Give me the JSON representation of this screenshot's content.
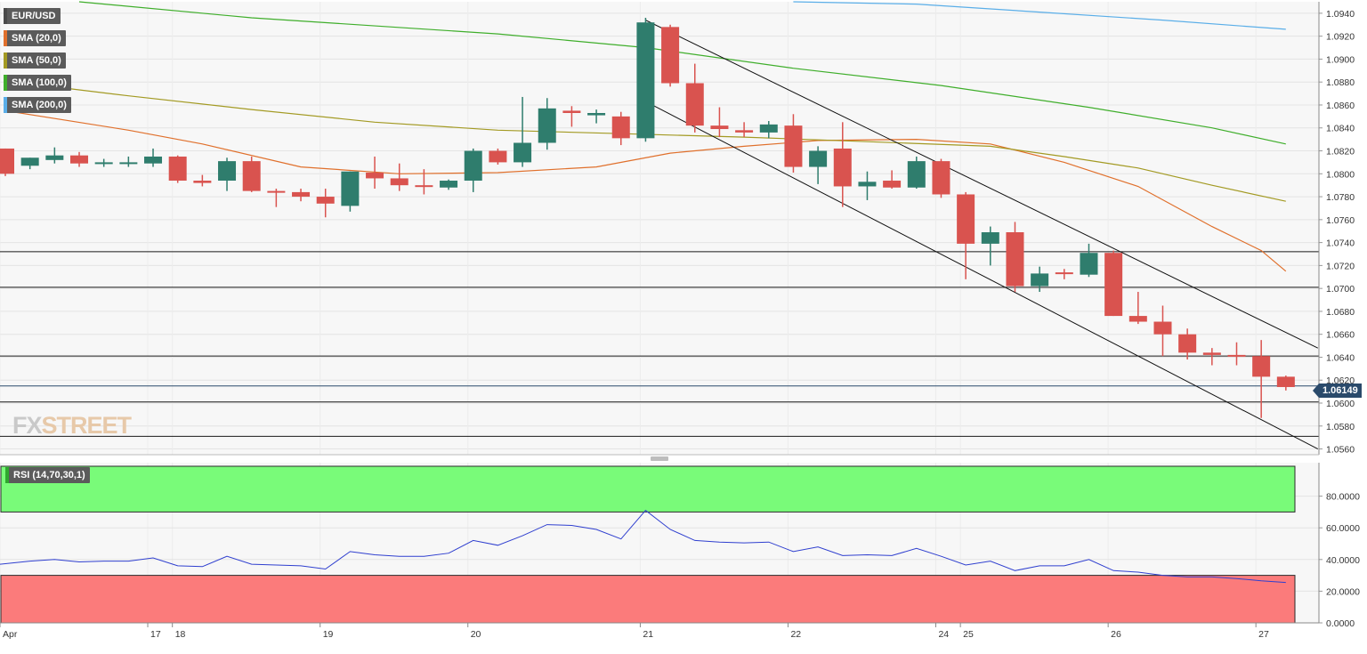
{
  "instrument": "EUR/USD",
  "current_price_label": "1.06149",
  "watermark": {
    "fx": "FX",
    "rest": "STREET"
  },
  "legends": [
    {
      "label": "EUR/USD",
      "color": "#4a4a4a"
    },
    {
      "label": "SMA (20,0)",
      "color": "#e0702c"
    },
    {
      "label": "SMA (50,0)",
      "color": "#a39a23"
    },
    {
      "label": "SMA (100,0)",
      "color": "#3fae2b"
    },
    {
      "label": "SMA (200,0)",
      "color": "#5aaee8"
    }
  ],
  "rsi_legend": {
    "label": "RSI (14,70,30,1)",
    "color": "#2ea82e"
  },
  "chart_data": [
    {
      "type": "candlestick",
      "instrument": "EUR/USD",
      "timeframe_labels": [
        "Apr",
        "17",
        "18",
        "19",
        "20",
        "21",
        "22",
        "24",
        "25",
        "26",
        "27"
      ],
      "y_ticks": [
        "1.0940",
        "1.0920",
        "1.0900",
        "1.0880",
        "1.0860",
        "1.0840",
        "1.0820",
        "1.0800",
        "1.0780",
        "1.0760",
        "1.0740",
        "1.0720",
        "1.0700",
        "1.0680",
        "1.0660",
        "1.0640",
        "1.0620",
        "1.0600",
        "1.0580",
        "1.0560"
      ],
      "ylim": [
        1.0555,
        1.095
      ],
      "current_price": 1.06149,
      "candles": [
        {
          "o": 1.0822,
          "h": 1.0822,
          "l": 1.0798,
          "c": 1.08
        },
        {
          "o": 1.0807,
          "h": 1.0814,
          "l": 1.0804,
          "c": 1.0814
        },
        {
          "o": 1.0812,
          "h": 1.0823,
          "l": 1.0809,
          "c": 1.0816
        },
        {
          "o": 1.0816,
          "h": 1.0819,
          "l": 1.0806,
          "c": 1.0809
        },
        {
          "o": 1.0809,
          "h": 1.0813,
          "l": 1.0806,
          "c": 1.081
        },
        {
          "o": 1.081,
          "h": 1.0815,
          "l": 1.0806,
          "c": 1.081
        },
        {
          "o": 1.0809,
          "h": 1.0822,
          "l": 1.0806,
          "c": 1.0815
        },
        {
          "o": 1.0815,
          "h": 1.0816,
          "l": 1.0792,
          "c": 1.0794
        },
        {
          "o": 1.0794,
          "h": 1.0799,
          "l": 1.0789,
          "c": 1.0792
        },
        {
          "o": 1.0794,
          "h": 1.0814,
          "l": 1.0785,
          "c": 1.0811
        },
        {
          "o": 1.0811,
          "h": 1.0815,
          "l": 1.0784,
          "c": 1.0785
        },
        {
          "o": 1.0785,
          "h": 1.0787,
          "l": 1.0771,
          "c": 1.0784
        },
        {
          "o": 1.0784,
          "h": 1.0787,
          "l": 1.0776,
          "c": 1.078
        },
        {
          "o": 1.078,
          "h": 1.0787,
          "l": 1.0762,
          "c": 1.0774
        },
        {
          "o": 1.0772,
          "h": 1.0802,
          "l": 1.0767,
          "c": 1.0802
        },
        {
          "o": 1.0801,
          "h": 1.0815,
          "l": 1.0787,
          "c": 1.0796
        },
        {
          "o": 1.0796,
          "h": 1.0809,
          "l": 1.0785,
          "c": 1.079
        },
        {
          "o": 1.079,
          "h": 1.0804,
          "l": 1.0782,
          "c": 1.0789
        },
        {
          "o": 1.0788,
          "h": 1.0795,
          "l": 1.0786,
          "c": 1.0794
        },
        {
          "o": 1.0794,
          "h": 1.0822,
          "l": 1.0784,
          "c": 1.082
        },
        {
          "o": 1.082,
          "h": 1.0822,
          "l": 1.0808,
          "c": 1.081
        },
        {
          "o": 1.081,
          "h": 1.0867,
          "l": 1.0806,
          "c": 1.0827
        },
        {
          "o": 1.0827,
          "h": 1.0866,
          "l": 1.0821,
          "c": 1.0857
        },
        {
          "o": 1.0855,
          "h": 1.0859,
          "l": 1.0841,
          "c": 1.0853
        },
        {
          "o": 1.0851,
          "h": 1.0856,
          "l": 1.0844,
          "c": 1.0853
        },
        {
          "o": 1.085,
          "h": 1.0854,
          "l": 1.0825,
          "c": 1.0831
        },
        {
          "o": 1.0831,
          "h": 1.0936,
          "l": 1.0828,
          "c": 1.0932
        },
        {
          "o": 1.0928,
          "h": 1.093,
          "l": 1.0876,
          "c": 1.0879
        },
        {
          "o": 1.0879,
          "h": 1.0896,
          "l": 1.0836,
          "c": 1.0842
        },
        {
          "o": 1.0842,
          "h": 1.0858,
          "l": 1.0832,
          "c": 1.0839
        },
        {
          "o": 1.0838,
          "h": 1.0845,
          "l": 1.0832,
          "c": 1.0836
        },
        {
          "o": 1.0836,
          "h": 1.0846,
          "l": 1.0831,
          "c": 1.0843
        },
        {
          "o": 1.0842,
          "h": 1.0852,
          "l": 1.0801,
          "c": 1.0806
        },
        {
          "o": 1.0806,
          "h": 1.0824,
          "l": 1.0791,
          "c": 1.082
        },
        {
          "o": 1.0822,
          "h": 1.0845,
          "l": 1.0771,
          "c": 1.0789
        },
        {
          "o": 1.0789,
          "h": 1.0802,
          "l": 1.0777,
          "c": 1.0793
        },
        {
          "o": 1.0794,
          "h": 1.0803,
          "l": 1.0787,
          "c": 1.0788
        },
        {
          "o": 1.0788,
          "h": 1.0815,
          "l": 1.0787,
          "c": 1.0811
        },
        {
          "o": 1.0811,
          "h": 1.0813,
          "l": 1.0779,
          "c": 1.0782
        },
        {
          "o": 1.0782,
          "h": 1.0784,
          "l": 1.0708,
          "c": 1.0739
        },
        {
          "o": 1.0739,
          "h": 1.0754,
          "l": 1.072,
          "c": 1.0749
        },
        {
          "o": 1.0749,
          "h": 1.0758,
          "l": 1.0697,
          "c": 1.0702
        },
        {
          "o": 1.0702,
          "h": 1.0719,
          "l": 1.0697,
          "c": 1.0713
        },
        {
          "o": 1.0714,
          "h": 1.0717,
          "l": 1.0708,
          "c": 1.0713
        },
        {
          "o": 1.0712,
          "h": 1.0739,
          "l": 1.071,
          "c": 1.0731
        },
        {
          "o": 1.0731,
          "h": 1.0733,
          "l": 1.0676,
          "c": 1.0676
        },
        {
          "o": 1.0676,
          "h": 1.0697,
          "l": 1.0669,
          "c": 1.0671
        },
        {
          "o": 1.0671,
          "h": 1.0685,
          "l": 1.0641,
          "c": 1.066
        },
        {
          "o": 1.066,
          "h": 1.0665,
          "l": 1.0638,
          "c": 1.0644
        },
        {
          "o": 1.0644,
          "h": 1.0648,
          "l": 1.0633,
          "c": 1.0642
        },
        {
          "o": 1.0642,
          "h": 1.0653,
          "l": 1.0633,
          "c": 1.0641
        },
        {
          "o": 1.0641,
          "h": 1.0655,
          "l": 1.0587,
          "c": 1.0623
        },
        {
          "o": 1.0623,
          "h": 1.0624,
          "l": 1.0611,
          "c": 1.0614
        }
      ],
      "series": [
        {
          "name": "SMA (20,0)",
          "color": "#e0702c",
          "points": [
            [
              0,
              1.0855
            ],
            [
              5,
              1.0838
            ],
            [
              8,
              1.0826
            ],
            [
              12,
              1.0806
            ],
            [
              16,
              1.08
            ],
            [
              20,
              1.0801
            ],
            [
              24,
              1.0806
            ],
            [
              27,
              1.0818
            ],
            [
              30,
              1.0824
            ],
            [
              33,
              1.0829
            ],
            [
              37,
              1.083
            ],
            [
              40,
              1.0826
            ],
            [
              43,
              1.081
            ],
            [
              46,
              1.0789
            ],
            [
              49,
              1.0754
            ],
            [
              51,
              1.0733
            ],
            [
              52,
              1.0715
            ]
          ]
        },
        {
          "name": "SMA (50,0)",
          "color": "#a39a23",
          "points": [
            [
              0,
              1.0881
            ],
            [
              5,
              1.0868
            ],
            [
              10,
              1.0856
            ],
            [
              15,
              1.0845
            ],
            [
              20,
              1.0838
            ],
            [
              25,
              1.0835
            ],
            [
              30,
              1.0832
            ],
            [
              35,
              1.0828
            ],
            [
              40,
              1.0824
            ],
            [
              43,
              1.0815
            ],
            [
              46,
              1.0805
            ],
            [
              49,
              1.079
            ],
            [
              52,
              1.0776
            ]
          ]
        },
        {
          "name": "SMA (100,0)",
          "color": "#3fae2b",
          "points": [
            [
              3,
              1.095
            ],
            [
              10,
              1.0936
            ],
            [
              20,
              1.0922
            ],
            [
              26,
              1.091
            ],
            [
              32,
              1.0892
            ],
            [
              38,
              1.0877
            ],
            [
              44,
              1.0858
            ],
            [
              49,
              1.084
            ],
            [
              52,
              1.0826
            ]
          ]
        },
        {
          "name": "SMA (200,0)",
          "color": "#5aaee8",
          "points": [
            [
              32,
              1.0952
            ],
            [
              37,
              1.0948
            ],
            [
              42,
              1.0941
            ],
            [
              47,
              1.0934
            ],
            [
              52,
              1.0926
            ]
          ]
        }
      ],
      "trendlines": [
        {
          "from": [
            26,
            1.0934
          ],
          "to": [
            53.3,
            1.0648
          ]
        },
        {
          "from": [
            26,
            1.0863
          ],
          "to": [
            53.3,
            1.056
          ]
        }
      ],
      "horizontal_levels": [
        1.0732,
        1.0701,
        1.0641,
        1.0601,
        1.0571
      ]
    },
    {
      "type": "line",
      "name": "RSI (14,70,30,1)",
      "y_ticks": [
        "80.0000",
        "60.0000",
        "40.0000",
        "20.0000",
        "0.0000"
      ],
      "ylim": [
        0,
        100
      ],
      "overbought": 70,
      "oversold": 30,
      "values": [
        37,
        39,
        40,
        38.5,
        39,
        39,
        41,
        36,
        35.5,
        42,
        37,
        36.5,
        36,
        34,
        45,
        43,
        42,
        42,
        44,
        52,
        49,
        55,
        62,
        61.5,
        59,
        53,
        71,
        59,
        52,
        51,
        50.5,
        51,
        45,
        48,
        42.5,
        43,
        42.5,
        47,
        42,
        36.5,
        39,
        33,
        36,
        36,
        40,
        33,
        32,
        30,
        29,
        29,
        28,
        26.5,
        25.5
      ],
      "line_color": "#2f3fcf"
    }
  ]
}
